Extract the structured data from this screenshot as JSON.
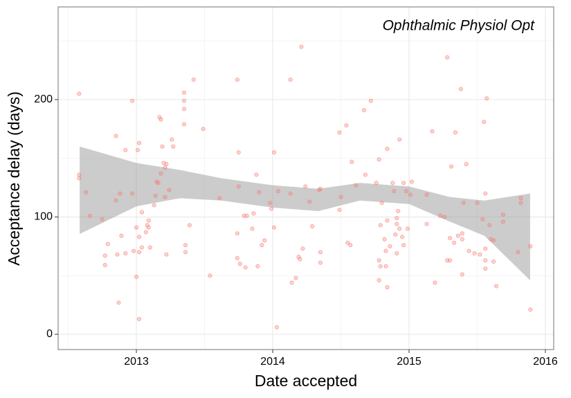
{
  "chart_data": {
    "type": "scatter",
    "annotation": "Ophthalmic Physiol Opt",
    "x_label": "Date accepted",
    "y_label": "Acceptance delay (days)",
    "xlim": [
      2012.426,
      2016.061
    ],
    "ylim": [
      -13,
      279
    ],
    "xticks": [
      2013,
      2014,
      2015,
      2016
    ],
    "yticks": [
      0,
      100,
      200
    ],
    "x_minor_grid": [
      2012.5,
      2013.5,
      2014.5,
      2015.5
    ],
    "y_minor_grid": [
      50,
      150,
      250
    ],
    "grid": true,
    "color": "#f8766d",
    "x": [
      2012.58,
      2012.58,
      2012.58,
      2012.63,
      2012.66,
      2012.75,
      2012.77,
      2012.77,
      2012.79,
      2012.85,
      2012.85,
      2012.86,
      2012.87,
      2012.88,
      2012.89,
      2012.92,
      2012.92,
      2012.97,
      2012.97,
      2012.98,
      2013.0,
      2013.0,
      2013.01,
      2013.02,
      2013.02,
      2013.02,
      2013.02,
      2013.04,
      2013.04,
      2013.07,
      2013.08,
      2013.09,
      2013.09,
      2013.1,
      2013.13,
      2013.14,
      2013.15,
      2013.16,
      2013.17,
      2013.18,
      2013.18,
      2013.19,
      2013.2,
      2013.21,
      2013.21,
      2013.22,
      2013.22,
      2013.24,
      2013.26,
      2013.27,
      2013.35,
      2013.35,
      2013.35,
      2013.35,
      2013.36,
      2013.36,
      2013.39,
      2013.42,
      2013.49,
      2013.54,
      2013.61,
      2013.74,
      2013.75,
      2013.74,
      2013.74,
      2013.75,
      2013.76,
      2013.8,
      2013.79,
      2013.81,
      2013.85,
      2013.86,
      2013.88,
      2013.89,
      2013.9,
      2013.92,
      2013.94,
      2013.98,
      2013.99,
      2014.01,
      2014.01,
      2014.03,
      2014.04,
      2014.13,
      2014.13,
      2014.14,
      2014.17,
      2014.19,
      2014.21,
      2014.2,
      2014.22,
      2014.24,
      2014.27,
      2014.29,
      2014.34,
      2014.35,
      2014.35,
      2014.35,
      2014.49,
      2014.49,
      2014.5,
      2014.54,
      2014.55,
      2014.57,
      2014.58,
      2014.61,
      2014.67,
      2014.68,
      2014.72,
      2014.76,
      2014.78,
      2014.78,
      2014.78,
      2014.79,
      2014.79,
      2014.8,
      2014.82,
      2014.83,
      2014.83,
      2014.84,
      2014.84,
      2014.84,
      2014.86,
      2014.88,
      2014.89,
      2014.9,
      2014.91,
      2014.91,
      2014.91,
      2014.92,
      2014.93,
      2014.93,
      2014.95,
      2014.96,
      2014.96,
      2014.98,
      2014.99,
      2015.01,
      2015.02,
      2015.13,
      2015.13,
      2015.17,
      2015.19,
      2015.23,
      2015.26,
      2015.28,
      2015.28,
      2015.3,
      2015.3,
      2015.31,
      2015.33,
      2015.34,
      2015.36,
      2015.38,
      2015.39,
      2015.39,
      2015.39,
      2015.4,
      2015.42,
      2015.44,
      2015.48,
      2015.5,
      2015.52,
      2015.54,
      2015.55,
      2015.56,
      2015.56,
      2015.56,
      2015.56,
      2015.57,
      2015.59,
      2015.6,
      2015.62,
      2015.62,
      2015.64,
      2015.69,
      2015.69,
      2015.8,
      2015.82,
      2015.82,
      2015.89,
      2015.89
    ],
    "values": [
      205,
      136,
      133,
      121,
      101,
      98,
      67,
      59,
      77,
      169,
      114,
      68,
      27,
      120,
      84,
      157,
      69,
      199,
      120,
      71,
      49,
      91,
      157,
      163,
      83,
      70,
      13,
      74,
      104,
      87,
      93,
      97,
      91,
      74,
      110,
      118,
      130,
      129,
      185,
      183,
      137,
      160,
      146,
      142,
      117,
      68,
      145,
      123,
      166,
      160,
      206,
      199,
      192,
      179,
      76,
      70,
      93,
      217,
      175,
      50,
      116,
      217,
      155,
      86,
      65,
      126,
      60,
      57,
      101,
      101,
      90,
      103,
      136,
      58,
      121,
      76,
      80,
      112,
      107,
      91,
      155,
      6,
      122,
      120,
      217,
      44,
      48,
      66,
      245,
      64,
      73,
      126,
      113,
      92,
      123,
      124,
      70,
      61,
      172,
      106,
      117,
      178,
      78,
      76,
      147,
      127,
      191,
      136,
      199,
      129,
      63,
      149,
      46,
      58,
      93,
      112,
      81,
      71,
      58,
      97,
      40,
      158,
      75,
      129,
      122,
      85,
      99,
      94,
      69,
      105,
      166,
      90,
      83,
      76,
      129,
      122,
      90,
      119,
      130,
      94,
      119,
      173,
      44,
      101,
      100,
      236,
      63,
      82,
      63,
      143,
      78,
      172,
      84,
      209,
      81,
      51,
      86,
      112,
      145,
      71,
      69,
      112,
      68,
      98,
      181,
      120,
      73,
      63,
      56,
      201,
      93,
      81,
      80,
      62,
      41,
      102,
      96,
      70,
      116,
      112,
      21,
      75
    ],
    "band": {
      "color": "#999999",
      "x": [
        2012.584,
        2013,
        2013.32,
        2013.624,
        2014,
        2014.335,
        2014.64,
        2015,
        2015.3,
        2015.553,
        2015.888
      ],
      "upper": [
        160,
        146,
        140,
        133,
        127,
        124,
        129,
        126,
        117,
        114,
        120
      ],
      "lower": [
        85.5,
        109,
        116,
        114,
        108,
        105,
        114,
        111,
        96,
        84,
        46
      ]
    }
  }
}
